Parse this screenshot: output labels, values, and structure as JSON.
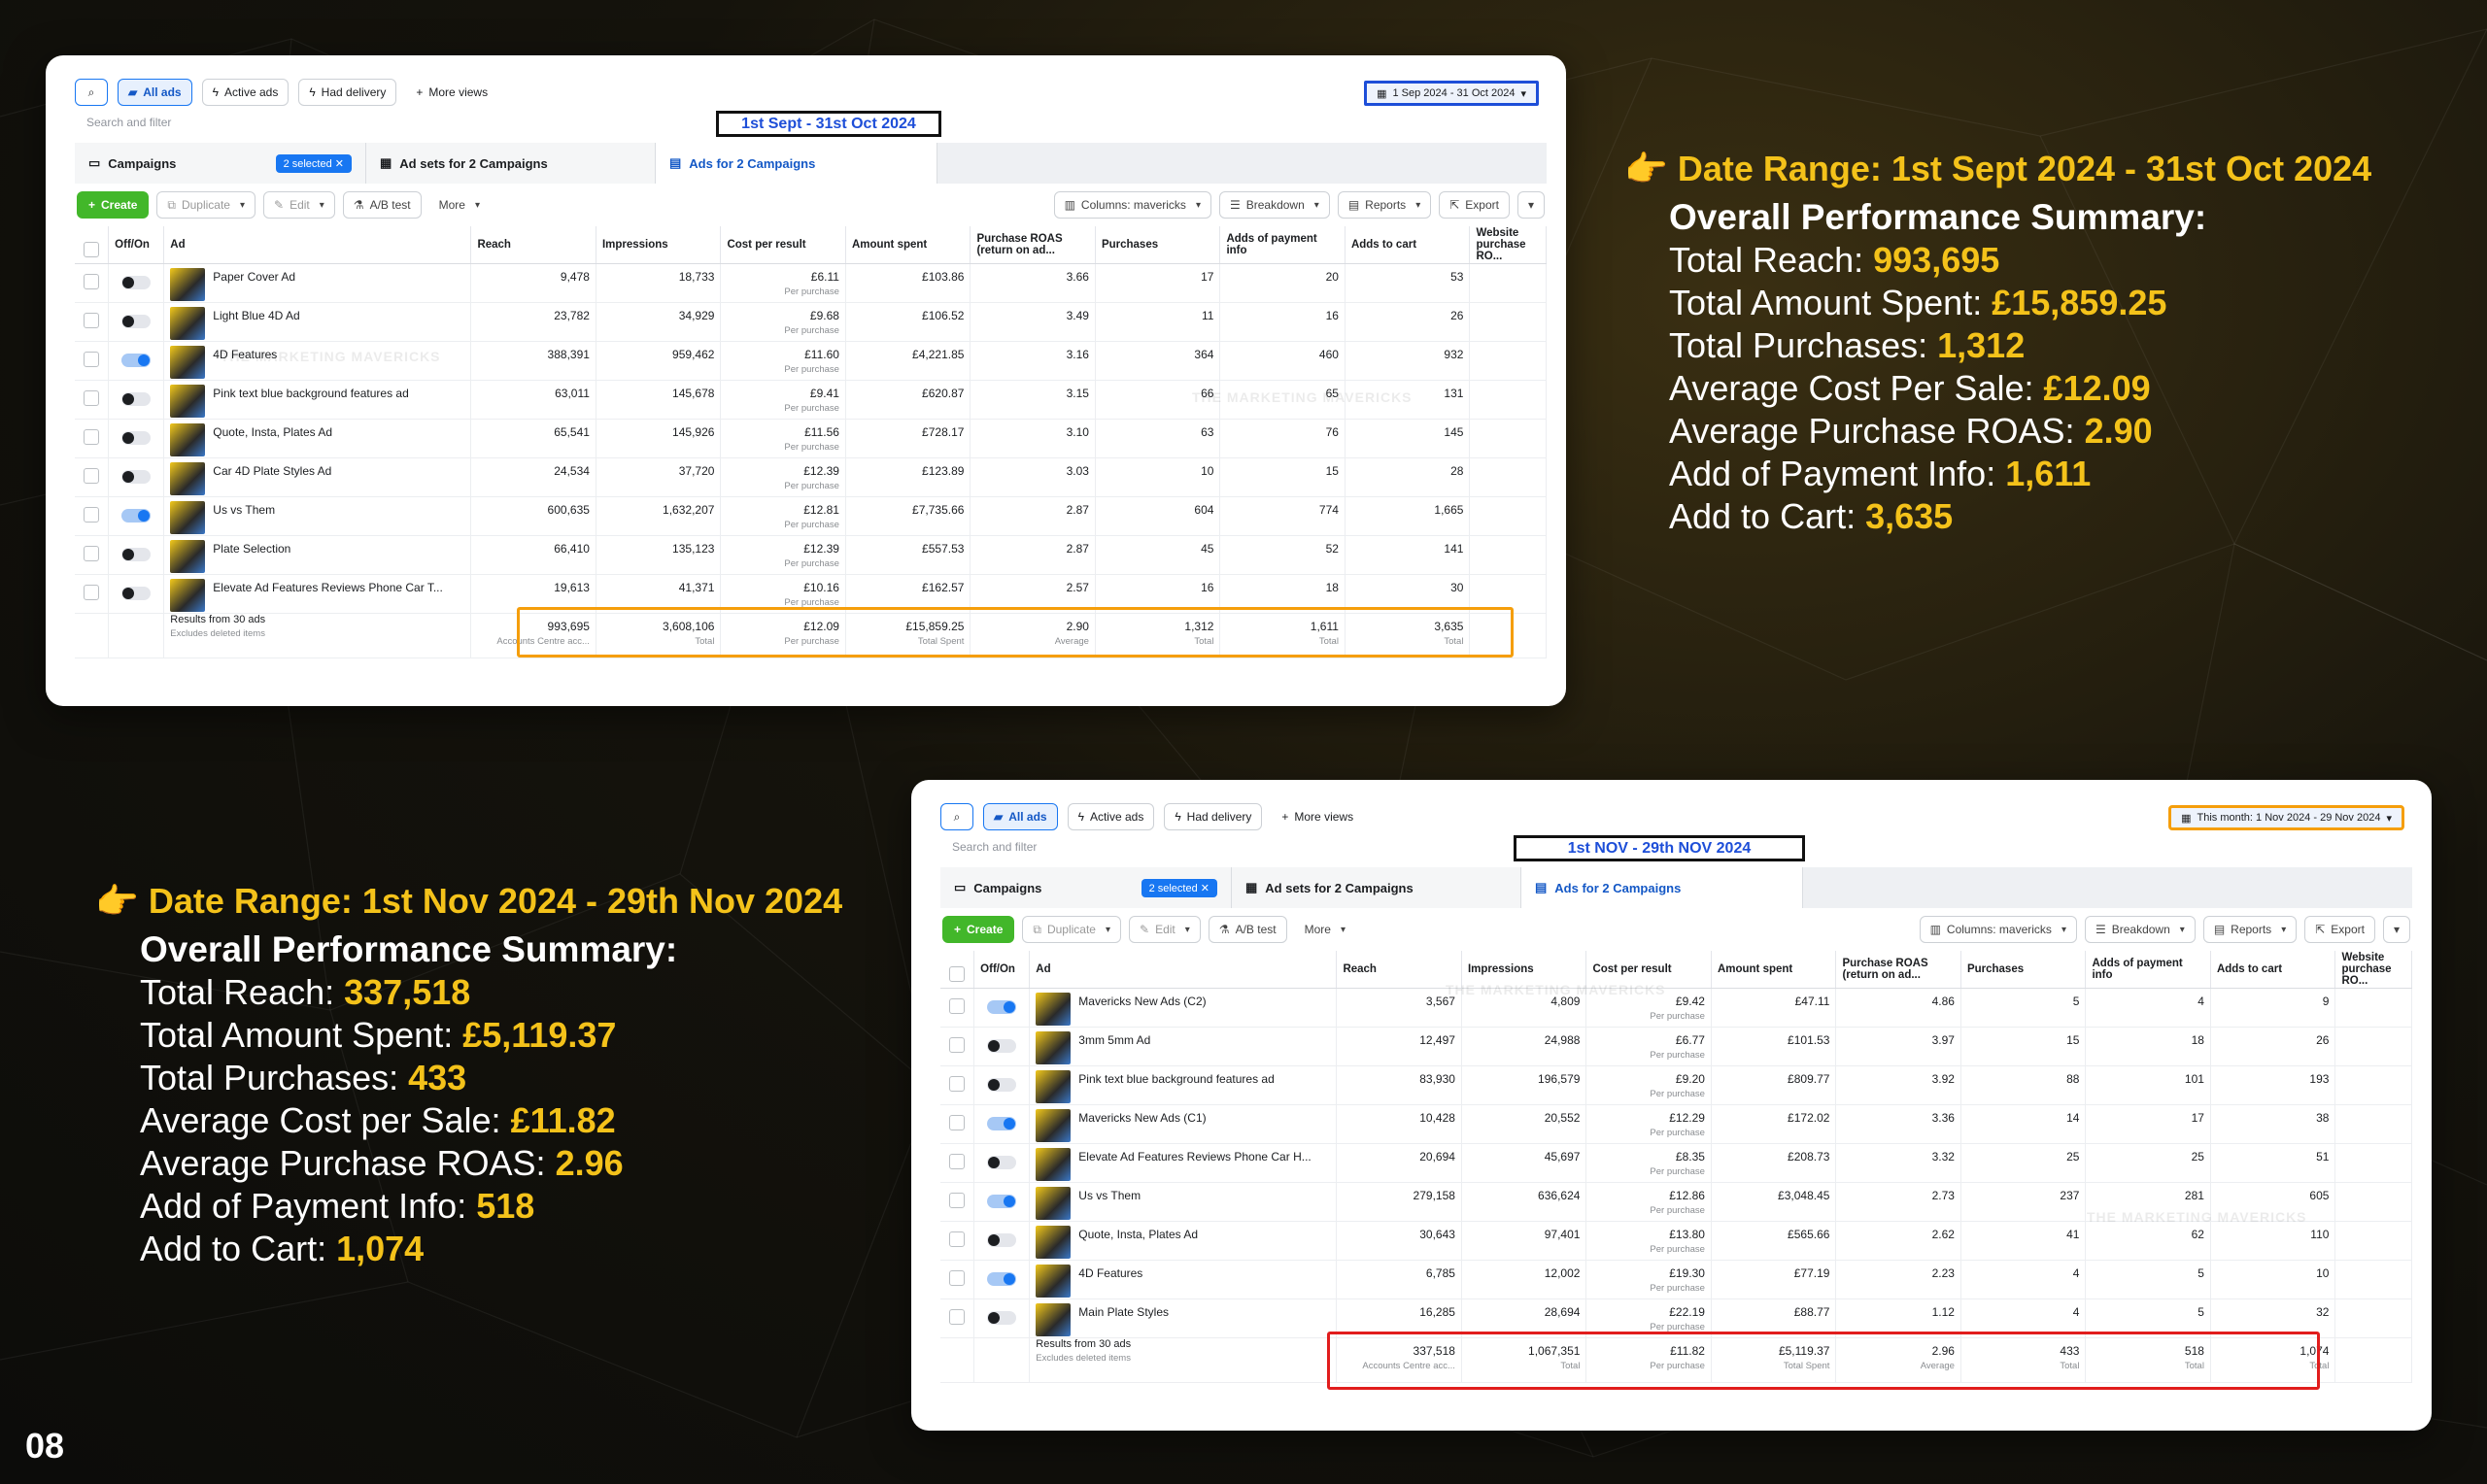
{
  "page_number": "08",
  "colors": {
    "accent": "#f4c21a",
    "highlight_orange": "#f59e0b",
    "highlight_red": "#e11d1d",
    "fb_blue": "#1877f2"
  },
  "shared_ui": {
    "search_icon": "search-icon",
    "all_ads": "All ads",
    "active_ads": "Active ads",
    "had_delivery": "Had delivery",
    "more_views": "More views",
    "search_placeholder": "Search and filter",
    "tab_campaigns": "Campaigns",
    "selected": "2 selected",
    "tab_adsets": "Ad sets for 2 Campaigns",
    "tab_ads": "Ads for 2 Campaigns",
    "create": "Create",
    "duplicate": "Duplicate",
    "edit": "Edit",
    "ab_test": "A/B test",
    "more": "More",
    "columns": "Columns: mavericks",
    "breakdown": "Breakdown",
    "reports": "Reports",
    "export": "Export",
    "results_label": "Results from 30 ads",
    "excludes_deleted": "Excludes deleted items",
    "headers": [
      "Off/On",
      "Ad",
      "Reach",
      "Impressions",
      "Cost per result",
      "Amount spent",
      "Purchase ROAS (return on ad...",
      "Purchases",
      "Adds of payment info",
      "Adds to cart",
      "Website purchase RO..."
    ],
    "per_purchase": "Per purchase",
    "watermark": "THE MARKETING MAVERICKS"
  },
  "panel1": {
    "date_picker": "1 Sep 2024 - 31 Oct 2024",
    "date_label": "1st Sept - 31st Oct 2024",
    "rows": [
      {
        "on": false,
        "name": "Paper Cover Ad",
        "reach": "9,478",
        "impr": "18,733",
        "cpr": "£6.11",
        "spent": "£103.86",
        "roas": "3.66",
        "purch": "17",
        "pay": "20",
        "cart": "53"
      },
      {
        "on": false,
        "name": "Light Blue 4D Ad",
        "reach": "23,782",
        "impr": "34,929",
        "cpr": "£9.68",
        "spent": "£106.52",
        "roas": "3.49",
        "purch": "11",
        "pay": "16",
        "cart": "26"
      },
      {
        "on": true,
        "name": "4D Features",
        "reach": "388,391",
        "impr": "959,462",
        "cpr": "£11.60",
        "spent": "£4,221.85",
        "roas": "3.16",
        "purch": "364",
        "pay": "460",
        "cart": "932"
      },
      {
        "on": false,
        "name": "Pink text blue background features ad",
        "reach": "63,011",
        "impr": "145,678",
        "cpr": "£9.41",
        "spent": "£620.87",
        "roas": "3.15",
        "purch": "66",
        "pay": "65",
        "cart": "131"
      },
      {
        "on": false,
        "name": "Quote, Insta, Plates Ad",
        "reach": "65,541",
        "impr": "145,926",
        "cpr": "£11.56",
        "spent": "£728.17",
        "roas": "3.10",
        "purch": "63",
        "pay": "76",
        "cart": "145"
      },
      {
        "on": false,
        "name": "Car 4D Plate Styles Ad",
        "reach": "24,534",
        "impr": "37,720",
        "cpr": "£12.39",
        "spent": "£123.89",
        "roas": "3.03",
        "purch": "10",
        "pay": "15",
        "cart": "28"
      },
      {
        "on": true,
        "name": "Us vs Them",
        "reach": "600,635",
        "impr": "1,632,207",
        "cpr": "£12.81",
        "spent": "£7,735.66",
        "roas": "2.87",
        "purch": "604",
        "pay": "774",
        "cart": "1,665"
      },
      {
        "on": false,
        "name": "Plate Selection",
        "reach": "66,410",
        "impr": "135,123",
        "cpr": "£12.39",
        "spent": "£557.53",
        "roas": "2.87",
        "purch": "45",
        "pay": "52",
        "cart": "141"
      },
      {
        "on": false,
        "name": "Elevate Ad Features Reviews Phone Car T...",
        "reach": "19,613",
        "impr": "41,371",
        "cpr": "£10.16",
        "spent": "£162.57",
        "roas": "2.57",
        "purch": "16",
        "pay": "18",
        "cart": "30"
      }
    ],
    "totals": {
      "reach": "993,695",
      "reach_sub": "Accounts Centre acc...",
      "impr": "3,608,106",
      "impr_sub": "Total",
      "cpr": "£12.09",
      "cpr_sub": "Per purchase",
      "spent": "£15,859.25",
      "spent_sub": "Total Spent",
      "roas": "2.90",
      "roas_sub": "Average",
      "purch": "1,312",
      "purch_sub": "Total",
      "pay": "1,611",
      "pay_sub": "Total",
      "cart": "3,635",
      "cart_sub": "Total"
    }
  },
  "panel2": {
    "date_picker": "This month: 1 Nov 2024 - 29 Nov 2024",
    "date_label": "1st NOV - 29th NOV 2024",
    "rows": [
      {
        "on": true,
        "name": "Mavericks New Ads (C2)",
        "reach": "3,567",
        "impr": "4,809",
        "cpr": "£9.42",
        "spent": "£47.11",
        "roas": "4.86",
        "purch": "5",
        "pay": "4",
        "cart": "9"
      },
      {
        "on": false,
        "name": "3mm 5mm Ad",
        "reach": "12,497",
        "impr": "24,988",
        "cpr": "£6.77",
        "spent": "£101.53",
        "roas": "3.97",
        "purch": "15",
        "pay": "18",
        "cart": "26"
      },
      {
        "on": false,
        "name": "Pink text blue background features ad",
        "reach": "83,930",
        "impr": "196,579",
        "cpr": "£9.20",
        "spent": "£809.77",
        "roas": "3.92",
        "purch": "88",
        "pay": "101",
        "cart": "193"
      },
      {
        "on": true,
        "name": "Mavericks New Ads (C1)",
        "reach": "10,428",
        "impr": "20,552",
        "cpr": "£12.29",
        "spent": "£172.02",
        "roas": "3.36",
        "purch": "14",
        "pay": "17",
        "cart": "38"
      },
      {
        "on": false,
        "name": "Elevate Ad Features Reviews Phone Car H...",
        "reach": "20,694",
        "impr": "45,697",
        "cpr": "£8.35",
        "spent": "£208.73",
        "roas": "3.32",
        "purch": "25",
        "pay": "25",
        "cart": "51"
      },
      {
        "on": true,
        "name": "Us vs Them",
        "reach": "279,158",
        "impr": "636,624",
        "cpr": "£12.86",
        "spent": "£3,048.45",
        "roas": "2.73",
        "purch": "237",
        "pay": "281",
        "cart": "605"
      },
      {
        "on": false,
        "name": "Quote, Insta, Plates Ad",
        "reach": "30,643",
        "impr": "97,401",
        "cpr": "£13.80",
        "spent": "£565.66",
        "roas": "2.62",
        "purch": "41",
        "pay": "62",
        "cart": "110"
      },
      {
        "on": true,
        "name": "4D Features",
        "reach": "6,785",
        "impr": "12,002",
        "cpr": "£19.30",
        "spent": "£77.19",
        "roas": "2.23",
        "purch": "4",
        "pay": "5",
        "cart": "10"
      },
      {
        "on": false,
        "name": "Main Plate Styles",
        "reach": "16,285",
        "impr": "28,694",
        "cpr": "£22.19",
        "spent": "£88.77",
        "roas": "1.12",
        "purch": "4",
        "pay": "5",
        "cart": "32"
      }
    ],
    "totals": {
      "reach": "337,518",
      "reach_sub": "Accounts Centre acc...",
      "impr": "1,067,351",
      "impr_sub": "Total",
      "cpr": "£11.82",
      "cpr_sub": "Per purchase",
      "spent": "£5,119.37",
      "spent_sub": "Total Spent",
      "roas": "2.96",
      "roas_sub": "Average",
      "purch": "433",
      "purch_sub": "Total",
      "pay": "518",
      "pay_sub": "Total",
      "cart": "1,074",
      "cart_sub": "Total"
    }
  },
  "summary1": {
    "pointer": "👉",
    "heading": "Date Range: 1st Sept 2024 - 31st Oct 2024",
    "title": "Overall Performance Summary:",
    "lines": [
      {
        "label": "Total Reach: ",
        "value": "993,695"
      },
      {
        "label": "Total Amount Spent: ",
        "value": "£15,859.25"
      },
      {
        "label": "Total Purchases: ",
        "value": "1,312"
      },
      {
        "label": "Average Cost Per Sale: ",
        "value": "£12.09"
      },
      {
        "label": "Average Purchase ROAS: ",
        "value": "2.90"
      },
      {
        "label": "Add of Payment Info: ",
        "value": "1,611"
      },
      {
        "label": "Add to Cart: ",
        "value": "3,635"
      }
    ]
  },
  "summary2": {
    "pointer": "👉",
    "heading": "Date Range: 1st Nov 2024 - 29th Nov 2024",
    "title": "Overall Performance Summary:",
    "lines": [
      {
        "label": "Total Reach: ",
        "value": "337,518"
      },
      {
        "label": "Total Amount Spent: ",
        "value": "£5,119.37"
      },
      {
        "label": "Total Purchases: ",
        "value": "433"
      },
      {
        "label": "Average Cost per Sale: ",
        "value": "£11.82"
      },
      {
        "label": "Average Purchase ROAS: ",
        "value": "2.96"
      },
      {
        "label": "Add of Payment Info: ",
        "value": "518"
      },
      {
        "label": "Add to Cart: ",
        "value": "1,074"
      }
    ]
  }
}
